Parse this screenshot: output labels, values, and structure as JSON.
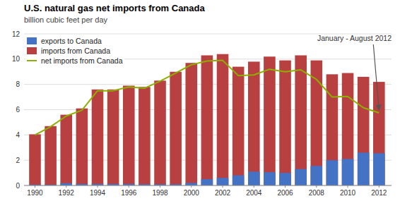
{
  "chart_data": {
    "type": "bar",
    "title": "U.S. natural gas net imports from Canada",
    "subtitle": "billion cubic feet per day",
    "annotation": "January - August 2012",
    "x": [
      1990,
      1991,
      1992,
      1993,
      1994,
      1995,
      1996,
      1997,
      1998,
      1999,
      2000,
      2001,
      2002,
      2003,
      2004,
      2005,
      2006,
      2007,
      2008,
      2009,
      2010,
      2011,
      2012
    ],
    "series": [
      {
        "name": "exports to Canada",
        "color": "#4472c4",
        "values": [
          0.07,
          0.07,
          0.18,
          0.12,
          0.12,
          0.12,
          0.12,
          0.1,
          0.1,
          0.1,
          0.2,
          0.5,
          0.6,
          0.8,
          1.1,
          1.05,
          1.0,
          1.3,
          1.55,
          2.0,
          2.1,
          2.6,
          2.55
        ]
      },
      {
        "name": "imports from Canada",
        "color": "#b94040",
        "values": [
          4.05,
          4.7,
          5.6,
          6.1,
          7.6,
          7.6,
          7.9,
          7.8,
          8.3,
          9.0,
          9.7,
          10.3,
          10.4,
          9.4,
          9.8,
          10.2,
          9.9,
          10.3,
          9.9,
          8.8,
          8.9,
          8.6,
          8.2
        ]
      },
      {
        "name": "net imports from Canada",
        "type": "line",
        "color": "#8db000",
        "values": [
          4.0,
          4.65,
          5.5,
          5.95,
          7.5,
          7.5,
          7.8,
          7.7,
          8.25,
          8.9,
          9.55,
          9.85,
          9.9,
          8.7,
          8.75,
          9.2,
          9.0,
          9.15,
          8.4,
          7.0,
          7.05,
          6.15,
          5.75
        ]
      }
    ],
    "xlim": [
      1989.3,
      2012.8
    ],
    "xticks": [
      1990,
      1992,
      1994,
      1996,
      1998,
      2000,
      2002,
      2004,
      2006,
      2008,
      2010,
      2012
    ],
    "ylim": [
      0,
      12
    ],
    "yticks": [
      0,
      2,
      4,
      6,
      8,
      10,
      12
    ],
    "grid": true,
    "legend": "upper left"
  }
}
